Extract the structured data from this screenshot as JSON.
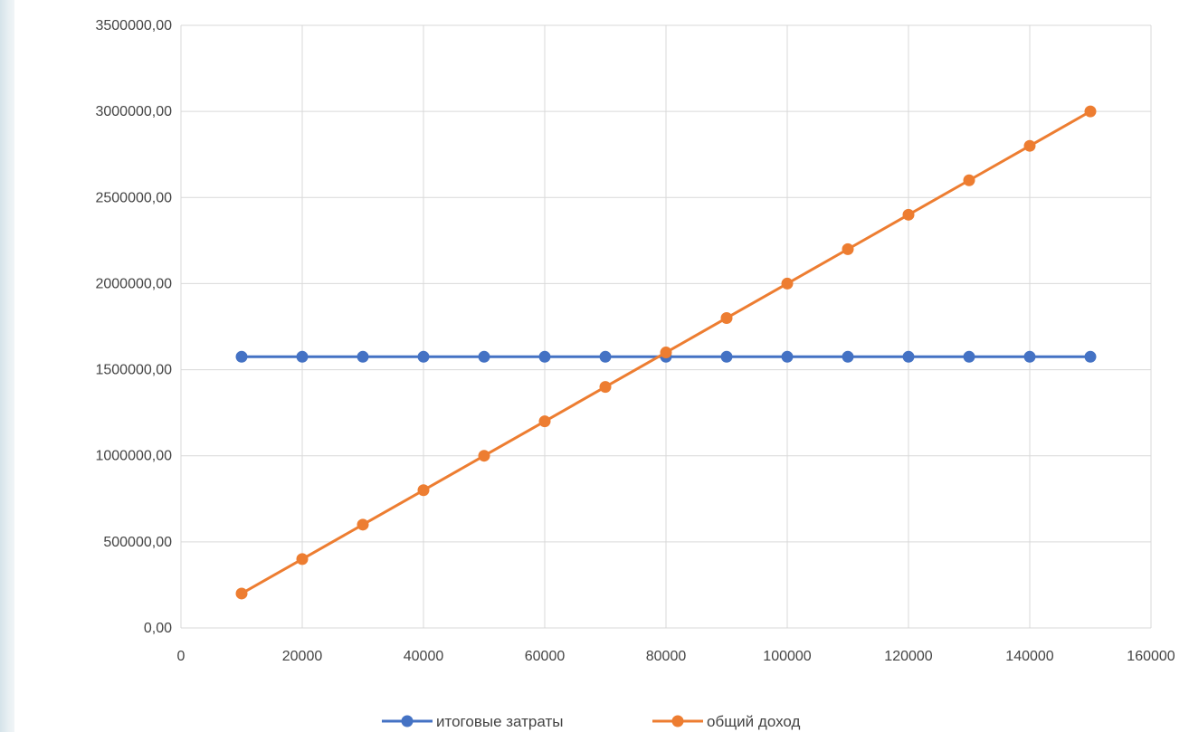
{
  "chart_data": {
    "type": "line",
    "title": "",
    "xlabel": "",
    "ylabel": "",
    "xlim": [
      0,
      160000
    ],
    "ylim": [
      0,
      3500000
    ],
    "x_ticks": [
      "0",
      "20000",
      "40000",
      "60000",
      "80000",
      "100000",
      "120000",
      "140000",
      "160000"
    ],
    "y_ticks": [
      "0,00",
      "500000,00",
      "1000000,00",
      "1500000,00",
      "2000000,00",
      "2500000,00",
      "3000000,00",
      "3500000,00"
    ],
    "grid": true,
    "legend_position": "bottom",
    "x": [
      10000,
      20000,
      30000,
      40000,
      50000,
      60000,
      70000,
      80000,
      90000,
      100000,
      110000,
      120000,
      130000,
      140000,
      150000
    ],
    "series": [
      {
        "name": "итоговые затраты",
        "color": "#4472C4",
        "values": [
          1575000,
          1575000,
          1575000,
          1575000,
          1575000,
          1575000,
          1575000,
          1575000,
          1575000,
          1575000,
          1575000,
          1575000,
          1575000,
          1575000,
          1575000
        ]
      },
      {
        "name": "общий доход",
        "color": "#ED7D31",
        "values": [
          200000,
          400000,
          600000,
          800000,
          1000000,
          1200000,
          1400000,
          1600000,
          1800000,
          2000000,
          2200000,
          2400000,
          2600000,
          2800000,
          3000000
        ]
      }
    ]
  }
}
